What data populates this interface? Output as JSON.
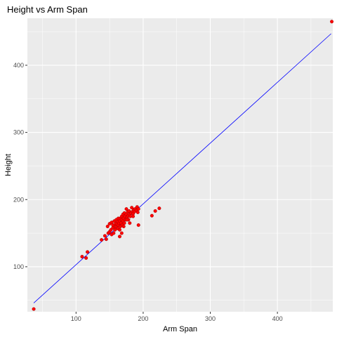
{
  "chart_data": {
    "type": "scatter",
    "title": "Height vs Arm Span",
    "xlabel": "Arm Span",
    "ylabel": "Height",
    "xlim": [
      27.5,
      482.5
    ],
    "ylim": [
      33,
      470
    ],
    "x_ticks": [
      100,
      200,
      300,
      400
    ],
    "y_ticks": [
      100,
      200,
      300,
      400
    ],
    "x_minor_ticks": [
      50,
      150,
      250,
      350,
      450
    ],
    "y_minor_ticks": [
      50,
      150,
      250,
      350,
      450
    ],
    "grid": true,
    "colors": {
      "panel_bg": "#ebebeb",
      "grid": "#ffffff",
      "points": "#ff0000",
      "point_stroke": "#8b0000",
      "line": "#0000ff",
      "text": "#000000",
      "tick_text": "#4d4d4d",
      "tick_mark": "#333333"
    },
    "fit_line": {
      "x": [
        37,
        480
      ],
      "y": [
        46,
        447
      ]
    },
    "points": {
      "x": [
        37,
        109,
        115,
        117,
        138,
        143,
        145,
        147,
        148,
        150,
        150,
        152,
        153,
        153,
        155,
        155,
        156,
        157,
        158,
        158,
        159,
        160,
        160,
        161,
        162,
        162,
        163,
        163,
        164,
        165,
        165,
        166,
        166,
        167,
        168,
        168,
        169,
        170,
        170,
        171,
        172,
        172,
        173,
        174,
        175,
        175,
        176,
        177,
        178,
        178,
        179,
        180,
        181,
        182,
        183,
        184,
        185,
        186,
        187,
        188,
        190,
        191,
        192,
        193,
        165,
        168,
        176,
        171,
        180,
        185,
        213,
        218,
        224,
        193,
        481
      ],
      "y": [
        37,
        115,
        113,
        122,
        140,
        146,
        141,
        160,
        150,
        152,
        164,
        155,
        166,
        148,
        158,
        162,
        150,
        168,
        155,
        160,
        164,
        160,
        170,
        163,
        167,
        157,
        172,
        162,
        165,
        168,
        155,
        172,
        160,
        165,
        170,
        175,
        162,
        168,
        178,
        172,
        180,
        165,
        175,
        170,
        186,
        178,
        174,
        182,
        176,
        170,
        183,
        178,
        175,
        180,
        188,
        182,
        179,
        185,
        182,
        186,
        184,
        189,
        181,
        186,
        145,
        150,
        170,
        160,
        165,
        175,
        176,
        183,
        187,
        162,
        465
      ]
    }
  }
}
